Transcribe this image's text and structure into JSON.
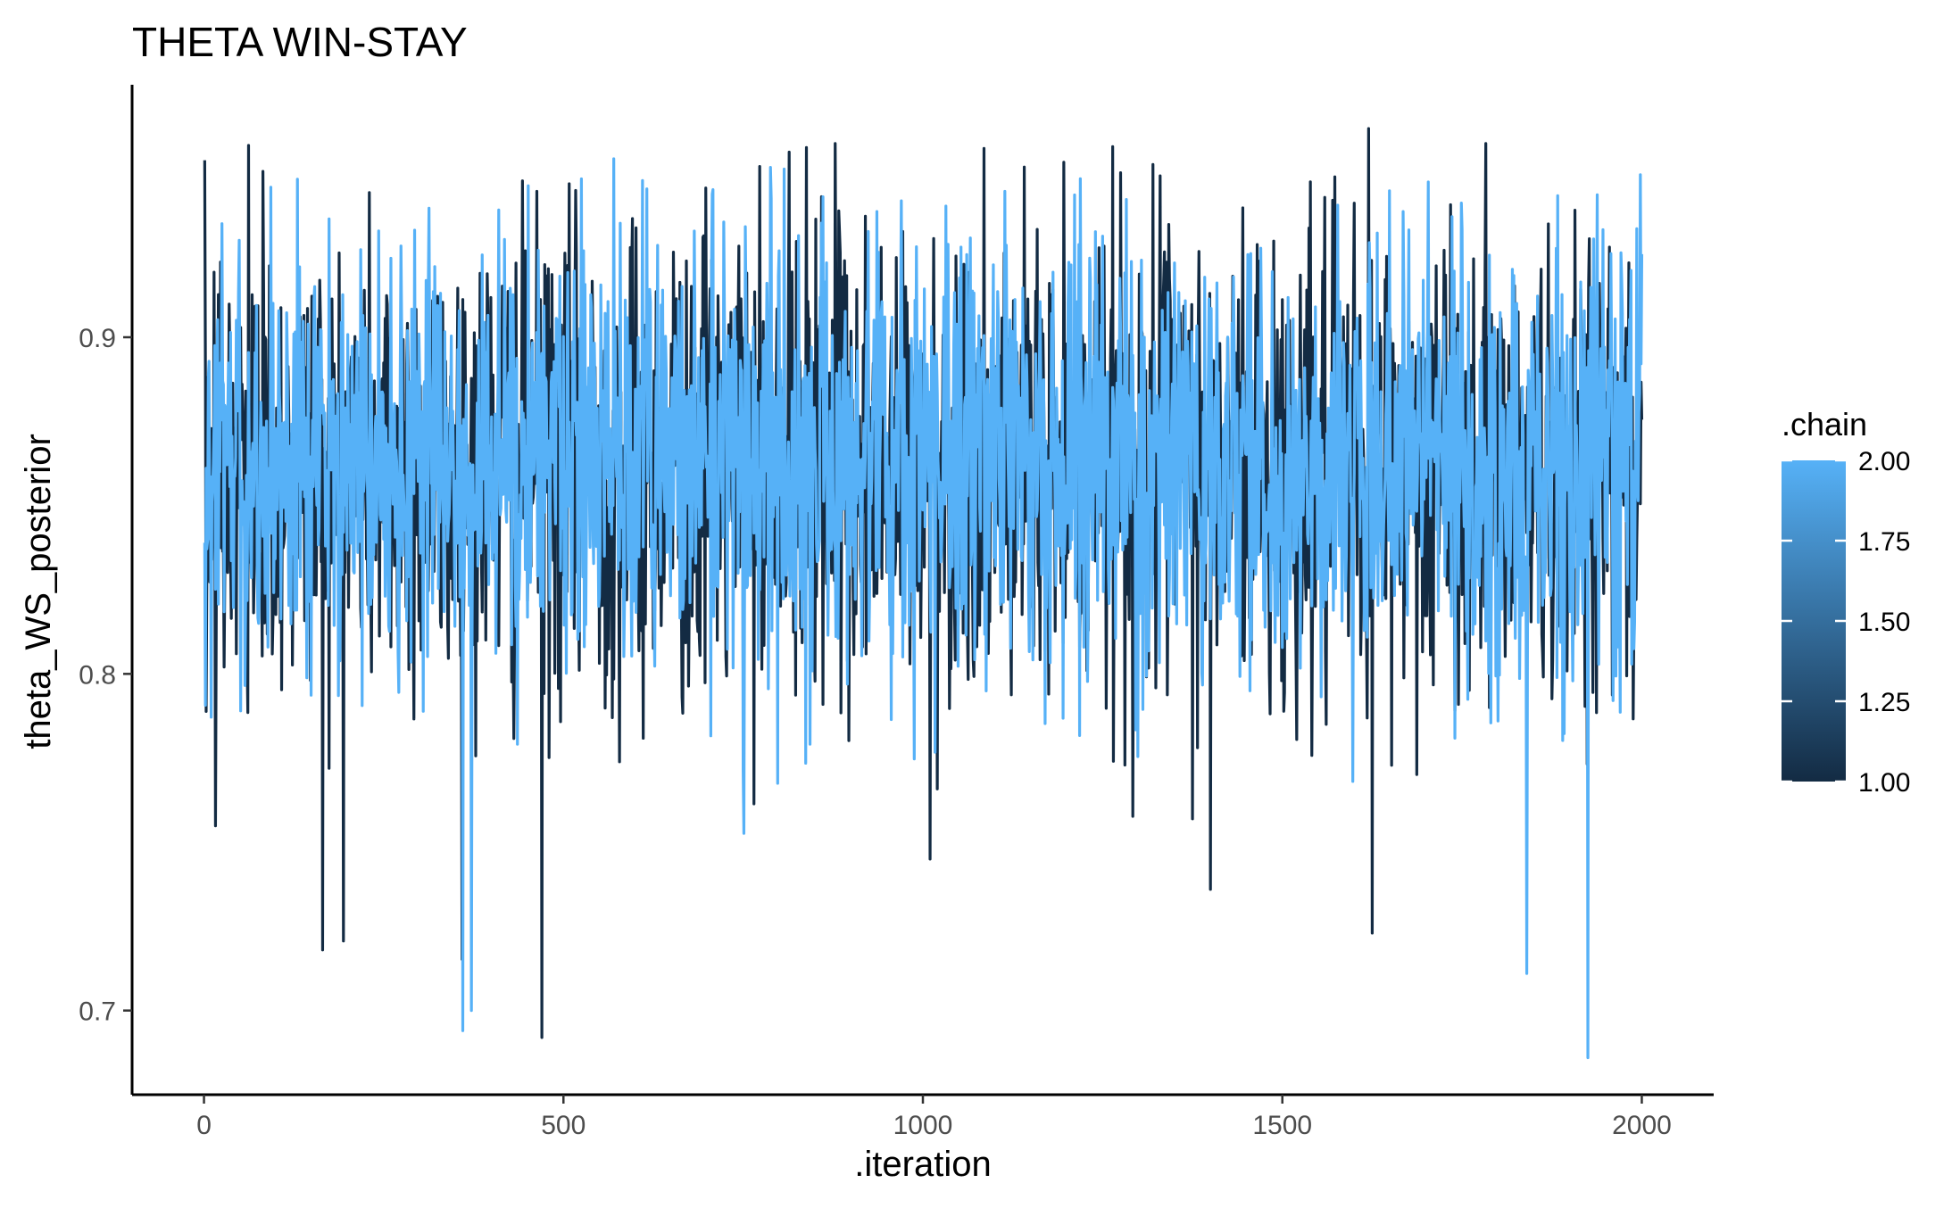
{
  "chart_data": {
    "type": "line",
    "title": "THETA WIN-STAY",
    "xlabel": ".iteration",
    "ylabel": "theta_WS_posterior",
    "xlim": [
      -100,
      2100
    ],
    "ylim": [
      0.675,
      0.975
    ],
    "x_ticks": [
      0,
      500,
      1000,
      1500,
      2000
    ],
    "x_tick_labels": [
      "0",
      "500",
      "1000",
      "1500",
      "2000"
    ],
    "y_ticks": [
      0.7,
      0.8,
      0.9
    ],
    "y_tick_labels": [
      "0.7",
      "0.8",
      "0.9"
    ],
    "grid": false,
    "legend": {
      "title": ".chain",
      "position": "right",
      "type": "colorbar",
      "range": [
        1.0,
        2.0
      ],
      "low_color": "#132b43",
      "high_color": "#56b1f7",
      "breaks": [
        1.0,
        1.25,
        1.5,
        1.75,
        2.0
      ],
      "break_labels": [
        "1.00",
        "1.25",
        "1.50",
        "1.75",
        "2.00"
      ]
    },
    "series": [
      {
        "chain": 1,
        "color": "#132b43",
        "iterations": [
          1,
          2000
        ],
        "summary": {
          "center": 0.862,
          "sd": 0.035,
          "min": 0.692,
          "max": 0.962
        },
        "notable_points": [
          {
            "x": 62,
            "y": 0.957
          },
          {
            "x": 165,
            "y": 0.718
          },
          {
            "x": 470,
            "y": 0.692
          },
          {
            "x": 1010,
            "y": 0.745
          },
          {
            "x": 1400,
            "y": 0.736
          },
          {
            "x": 1620,
            "y": 0.962
          },
          {
            "x": 1625,
            "y": 0.723
          }
        ]
      },
      {
        "chain": 2,
        "color": "#56b1f7",
        "iterations": [
          1,
          2000
        ],
        "summary": {
          "center": 0.864,
          "sd": 0.033,
          "min": 0.686,
          "max": 0.955
        },
        "notable_points": [
          {
            "x": 360,
            "y": 0.694
          },
          {
            "x": 372,
            "y": 0.7
          },
          {
            "x": 570,
            "y": 0.953
          },
          {
            "x": 1840,
            "y": 0.955
          },
          {
            "x": 1840,
            "y": 0.711
          },
          {
            "x": 1925,
            "y": 0.686
          }
        ]
      }
    ]
  }
}
